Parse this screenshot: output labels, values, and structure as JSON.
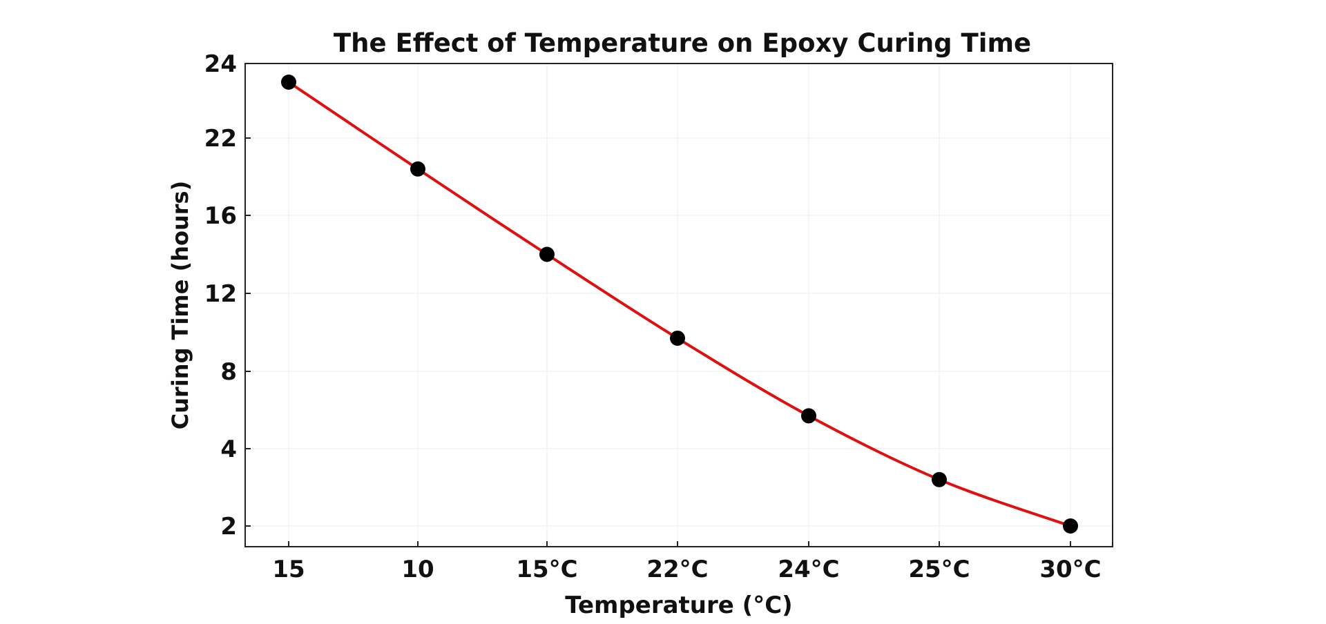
{
  "chart_data": {
    "type": "line",
    "title": "The Effect of Temperature on Epoxy Curing Time",
    "xlabel": "Temperature (°C)",
    "ylabel": "Curing Time (hours)",
    "categories": [
      "15",
      "10",
      "15°C",
      "22°C",
      "24°C",
      "25°C",
      "30°C"
    ],
    "y_ticks": [
      2,
      4,
      8,
      12,
      16,
      22,
      24
    ],
    "ylim": [
      2,
      24
    ],
    "grid": true,
    "series": [
      {
        "values": [
          23.5,
          19.6,
          14.0,
          9.7,
          5.7,
          3.2,
          2.0
        ]
      }
    ],
    "colors": {
      "line": "#e01010",
      "marker": "#000000",
      "grid": "#ececec",
      "axes": "#222222"
    }
  }
}
